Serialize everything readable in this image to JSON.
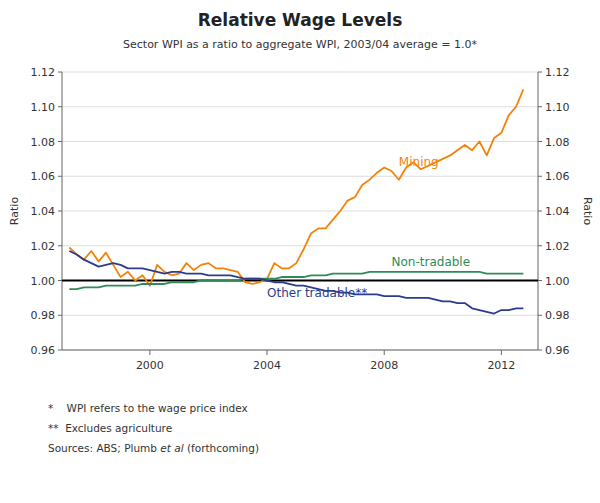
{
  "chart_data": {
    "type": "line",
    "title": "Relative Wage Levels",
    "subtitle": "Sector WPI as a ratio to aggregate WPI, 2003/04 average = 1.0*",
    "y_label": "Ratio",
    "y2_label": "Ratio",
    "grid": true,
    "xlim": [
      1997.0,
      2013.25
    ],
    "xticks": [
      2000,
      2004,
      2008,
      2012
    ],
    "ylim": [
      0.96,
      1.12
    ],
    "yticks": [
      0.96,
      0.98,
      {
        "value": 1.0,
        "label": "1.00"
      },
      1.02,
      1.04,
      1.06,
      1.08,
      {
        "value": 1.1,
        "label": "1.10"
      },
      1.12
    ],
    "y2lim": [
      0.96,
      1.12
    ],
    "y2ticks": [
      0.96,
      0.98,
      {
        "value": 1.0,
        "label": "1.00"
      },
      1.02,
      1.04,
      1.06,
      1.08,
      {
        "value": 1.1,
        "label": "1.10"
      },
      1.12
    ],
    "reference_line": {
      "value": 1.0,
      "color": "#000000"
    },
    "x": [
      1997.25,
      1997.5,
      1997.75,
      1998.0,
      1998.25,
      1998.5,
      1998.75,
      1999.0,
      1999.25,
      1999.5,
      1999.75,
      2000.0,
      2000.25,
      2000.5,
      2000.75,
      2001.0,
      2001.25,
      2001.5,
      2001.75,
      2002.0,
      2002.25,
      2002.5,
      2002.75,
      2003.0,
      2003.25,
      2003.5,
      2003.75,
      2004.0,
      2004.25,
      2004.5,
      2004.75,
      2005.0,
      2005.25,
      2005.5,
      2005.75,
      2006.0,
      2006.25,
      2006.5,
      2006.75,
      2007.0,
      2007.25,
      2007.5,
      2007.75,
      2008.0,
      2008.25,
      2008.5,
      2008.75,
      2009.0,
      2009.25,
      2009.5,
      2009.75,
      2010.0,
      2010.25,
      2010.5,
      2010.75,
      2011.0,
      2011.25,
      2011.5,
      2011.75,
      2012.0,
      2012.25,
      2012.5,
      2012.75
    ],
    "series": [
      {
        "name": "Mining",
        "color": "#F4820A",
        "values": [
          1.019,
          1.015,
          1.012,
          1.017,
          1.011,
          1.016,
          1.009,
          1.002,
          1.005,
          1.0,
          1.003,
          0.997,
          1.009,
          1.005,
          1.003,
          1.004,
          1.01,
          1.006,
          1.009,
          1.01,
          1.007,
          1.007,
          1.006,
          1.005,
          0.999,
          0.998,
          0.999,
          1.001,
          1.01,
          1.007,
          1.007,
          1.01,
          1.018,
          1.027,
          1.03,
          1.03,
          1.035,
          1.04,
          1.046,
          1.048,
          1.055,
          1.058,
          1.062,
          1.065,
          1.063,
          1.058,
          1.065,
          1.068,
          1.064,
          1.066,
          1.068,
          1.07,
          1.072,
          1.075,
          1.078,
          1.075,
          1.08,
          1.072,
          1.082,
          1.085,
          1.095,
          1.1,
          1.11
        ]
      },
      {
        "name": "Non-tradable",
        "color": "#2E8B57",
        "values": [
          0.995,
          0.995,
          0.996,
          0.996,
          0.996,
          0.997,
          0.997,
          0.997,
          0.997,
          0.997,
          0.998,
          0.998,
          0.998,
          0.998,
          0.999,
          0.999,
          0.999,
          0.999,
          1.0,
          1.0,
          1.0,
          1.0,
          1.0,
          1.0,
          1.001,
          1.001,
          1.001,
          1.001,
          1.001,
          1.002,
          1.002,
          1.002,
          1.002,
          1.003,
          1.003,
          1.003,
          1.004,
          1.004,
          1.004,
          1.004,
          1.004,
          1.005,
          1.005,
          1.005,
          1.005,
          1.005,
          1.005,
          1.005,
          1.005,
          1.005,
          1.005,
          1.005,
          1.005,
          1.005,
          1.005,
          1.005,
          1.005,
          1.004,
          1.004,
          1.004,
          1.004,
          1.004,
          1.004
        ]
      },
      {
        "name": "Other tradable**",
        "color": "#2B3C8C",
        "values": [
          1.017,
          1.015,
          1.012,
          1.01,
          1.008,
          1.009,
          1.01,
          1.009,
          1.007,
          1.007,
          1.007,
          1.006,
          1.005,
          1.004,
          1.005,
          1.005,
          1.004,
          1.004,
          1.004,
          1.003,
          1.003,
          1.003,
          1.003,
          1.002,
          1.001,
          1.001,
          1.001,
          1.0,
          0.999,
          0.999,
          0.998,
          0.997,
          0.997,
          0.996,
          0.995,
          0.994,
          0.994,
          0.993,
          0.993,
          0.992,
          0.992,
          0.992,
          0.992,
          0.991,
          0.991,
          0.991,
          0.99,
          0.99,
          0.99,
          0.99,
          0.989,
          0.988,
          0.988,
          0.987,
          0.987,
          0.984,
          0.983,
          0.982,
          0.981,
          0.983,
          0.983,
          0.984,
          0.984
        ]
      }
    ],
    "footnotes": [
      "*    WPI refers to the wage price index",
      "**  Excludes agriculture",
      [
        "Sources: ABS; Plumb ",
        "et al",
        " (forthcoming)"
      ]
    ]
  }
}
